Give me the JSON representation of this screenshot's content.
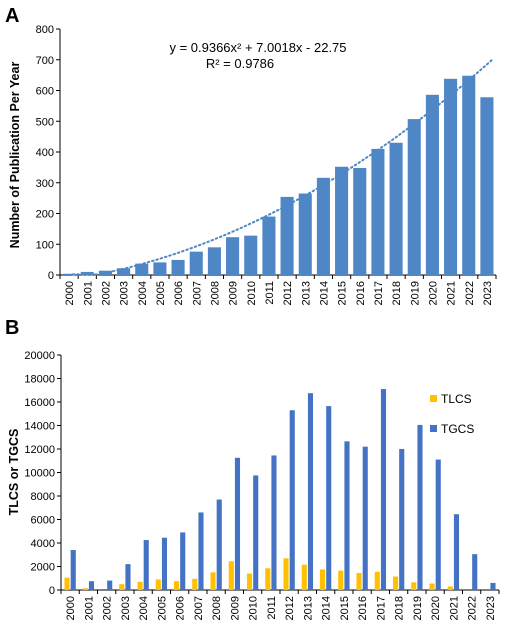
{
  "chart_data": [
    {
      "panel": "A",
      "type": "bar",
      "ylabel": "Number of Publication Per Year",
      "ylim": [
        0,
        800
      ],
      "yticks": [
        0,
        100,
        200,
        300,
        400,
        500,
        600,
        700,
        800
      ],
      "grid": false,
      "categories": [
        "2000",
        "2001",
        "2002",
        "2003",
        "2004",
        "2005",
        "2006",
        "2007",
        "2008",
        "2009",
        "2010",
        "2011",
        "2012",
        "2013",
        "2014",
        "2015",
        "2016",
        "2017",
        "2018",
        "2019",
        "2020",
        "2021",
        "2022",
        "2023"
      ],
      "values": [
        4,
        10,
        14,
        22,
        37,
        41,
        49,
        76,
        90,
        123,
        128,
        190,
        254,
        265,
        316,
        352,
        348,
        410,
        430,
        507,
        586,
        638,
        648,
        578
      ],
      "bar_color": "#4f86c6",
      "trendline": {
        "type": "polynomial",
        "equation": "y = 0.9366x² + 7.0018x - 22.75",
        "r_squared": "R² = 0.9786",
        "coefficients": [
          0.9366,
          7.0018,
          -22.75
        ],
        "color": "#4f86c6",
        "style": "dotted"
      }
    },
    {
      "panel": "B",
      "type": "bar",
      "ylabel": "TLCS or TGCS",
      "ylim": [
        0,
        20000
      ],
      "yticks": [
        0,
        2000,
        4000,
        6000,
        8000,
        10000,
        12000,
        14000,
        16000,
        18000,
        20000
      ],
      "grid": false,
      "legend_position": "top-right",
      "categories": [
        "2000",
        "2001",
        "2002",
        "2003",
        "2004",
        "2005",
        "2006",
        "2007",
        "2008",
        "2009",
        "2010",
        "2011",
        "2012",
        "2013",
        "2014",
        "2015",
        "2016",
        "2017",
        "2018",
        "2019",
        "2020",
        "2021",
        "2022",
        "2023"
      ],
      "series": [
        {
          "name": "TLCS",
          "color": "#ffc000",
          "values": [
            1050,
            150,
            0,
            500,
            700,
            900,
            750,
            950,
            1500,
            2450,
            1400,
            1850,
            2700,
            2150,
            1750,
            1650,
            1450,
            1550,
            1150,
            650,
            550,
            300,
            0,
            0
          ]
        },
        {
          "name": "TGCS",
          "color": "#4472c4",
          "values": [
            3400,
            750,
            800,
            2200,
            4250,
            4450,
            4900,
            6600,
            7700,
            11250,
            9750,
            11450,
            15300,
            16750,
            15650,
            12650,
            12200,
            17100,
            12000,
            14050,
            11100,
            6450,
            3050,
            600
          ]
        }
      ]
    }
  ]
}
